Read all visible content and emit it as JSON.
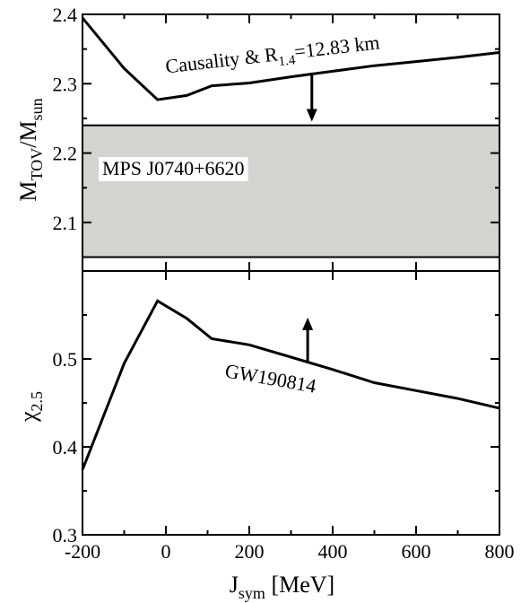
{
  "chart_data": [
    {
      "type": "line",
      "panel": "top",
      "xlim": [
        -200,
        800
      ],
      "ylim": [
        2.2,
        2.4
      ],
      "y_plot_range": [
        2.03,
        2.4
      ],
      "yticks": [
        2.1,
        2.2,
        2.3,
        2.4
      ],
      "ytick_labels": [
        "2.1",
        "2.2",
        "2.3",
        "2.4"
      ],
      "ylabel": "M_TOV/M_sun",
      "ylabel_main": "M",
      "ylabel_sub1": "TOV",
      "ylabel_slash": "/M",
      "ylabel_sub2": "sun",
      "grid": false,
      "series": [
        {
          "name": "Causality & R1.4=12.83 km",
          "x": [
            -200,
            -100,
            -20,
            50,
            110,
            200,
            300,
            400,
            500,
            600,
            700,
            800
          ],
          "y": [
            2.395,
            2.322,
            2.277,
            2.283,
            2.297,
            2.301,
            2.31,
            2.318,
            2.326,
            2.332,
            2.338,
            2.345
          ]
        }
      ],
      "band": {
        "label": "MPS J0740+6620",
        "y_low": 2.05,
        "y_high": 2.24,
        "color": "#d3d3cf"
      },
      "annotation": {
        "text_main": "Causality & R",
        "text_sub": "1.4",
        "text_tail": "=12.83 km",
        "arrow_x": 350,
        "arrow_from_y": 2.316,
        "arrow_to_y": 2.248,
        "arrow_direction": "down"
      }
    },
    {
      "type": "line",
      "panel": "bottom",
      "xlim": [
        -200,
        800
      ],
      "ylim": [
        0.3,
        0.6
      ],
      "xticks": [
        -200,
        0,
        200,
        400,
        600,
        800
      ],
      "xtick_labels": [
        "-200",
        "0",
        "200",
        "400",
        "600",
        "800"
      ],
      "yticks": [
        0.3,
        0.4,
        0.5
      ],
      "ytick_labels": [
        "0.3",
        "0.4",
        "0.5"
      ],
      "xlabel": "J_sym [MeV]",
      "xlabel_main": "J",
      "xlabel_sub": "sym",
      "xlabel_tail": " [MeV]",
      "ylabel": "χ_2.5",
      "ylabel_main": "χ",
      "ylabel_sub": "2.5",
      "grid": false,
      "series": [
        {
          "name": "GW190814",
          "x": [
            -200,
            -100,
            -20,
            50,
            110,
            200,
            300,
            400,
            500,
            600,
            700,
            800
          ],
          "y": [
            0.374,
            0.495,
            0.566,
            0.546,
            0.523,
            0.516,
            0.502,
            0.488,
            0.473,
            0.464,
            0.455,
            0.444
          ]
        }
      ],
      "annotation": {
        "text": "GW190814",
        "arrow_x": 340,
        "arrow_from_y": 0.497,
        "arrow_to_y": 0.545,
        "arrow_direction": "up"
      }
    }
  ]
}
